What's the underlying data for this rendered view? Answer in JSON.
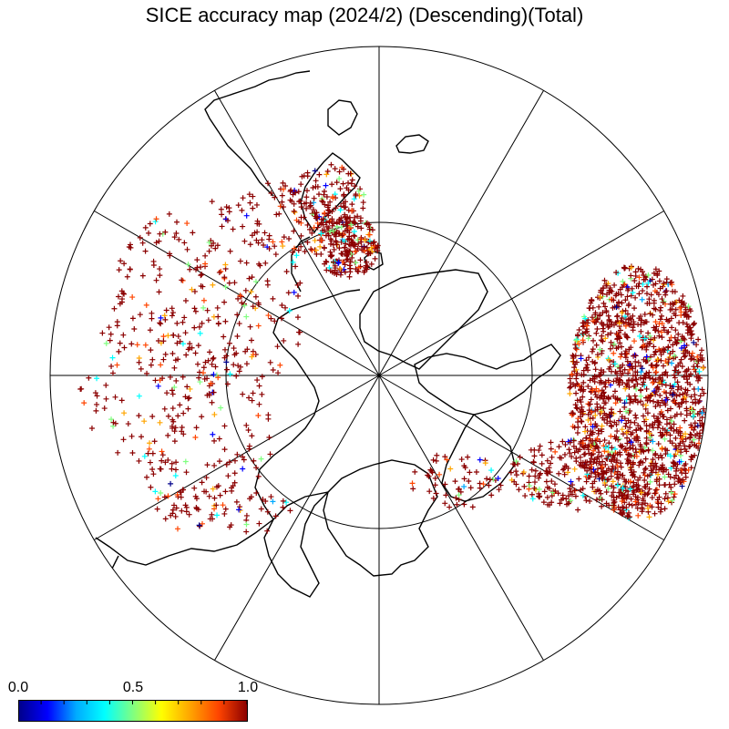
{
  "title": "SICE accuracy map (2024/2) (Descending)(Total)",
  "colorbar": {
    "min_label": "0.0",
    "mid_label": "0.5",
    "max_label": "1.0",
    "colors": [
      "#00008b",
      "#0000ff",
      "#00aaff",
      "#00ffff",
      "#80ff80",
      "#ffff00",
      "#ffa500",
      "#ff4500",
      "#8b0000"
    ]
  },
  "map": {
    "projection": "north-polar-stereographic",
    "center": "North Pole",
    "meridian_lines_every_deg": 30,
    "latitude_circle_deg": 70,
    "marker": "+",
    "marker_value_dominant": 1.0
  }
}
